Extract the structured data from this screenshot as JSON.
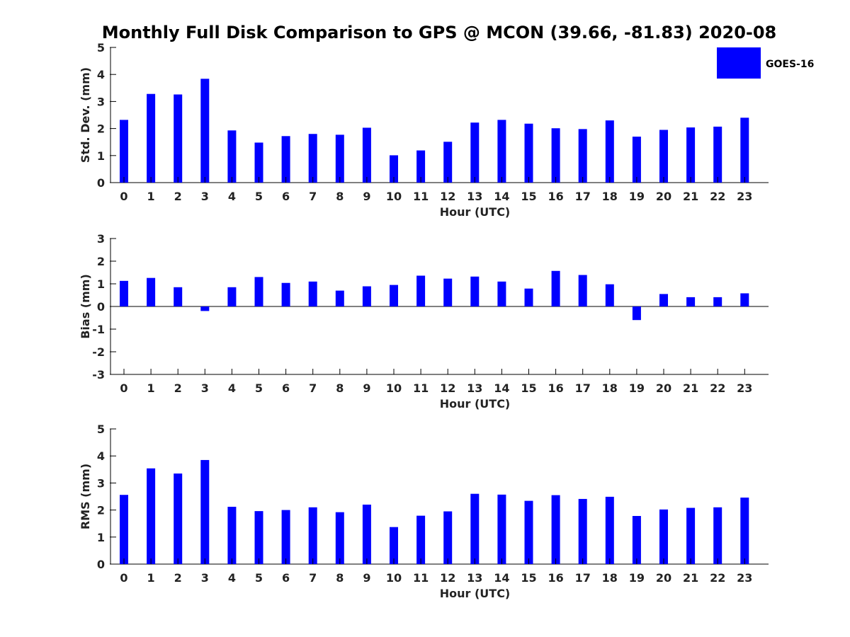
{
  "chart_data": {
    "type": "bar",
    "title": "Monthly Full Disk Comparison to GPS @ MCON (39.66, -81.83) 2020-08",
    "legend": {
      "label": "GOES-16",
      "color": "#0000ff",
      "placement": "top-right"
    },
    "categories": [
      "0",
      "1",
      "2",
      "3",
      "4",
      "5",
      "6",
      "7",
      "8",
      "9",
      "10",
      "11",
      "12",
      "13",
      "14",
      "15",
      "16",
      "17",
      "18",
      "19",
      "20",
      "21",
      "22",
      "23"
    ],
    "panels": [
      {
        "ylabel": "Std. Dev. (mm)",
        "xlabel": "Hour (UTC)",
        "ylim": [
          0,
          5
        ],
        "yticks": [
          "0",
          "1",
          "2",
          "3",
          "4",
          "5"
        ],
        "values": [
          2.32,
          3.28,
          3.26,
          3.84,
          1.93,
          1.48,
          1.72,
          1.8,
          1.77,
          2.03,
          1.01,
          1.19,
          1.51,
          2.22,
          2.32,
          2.18,
          2.01,
          1.98,
          2.3,
          1.7,
          1.95,
          2.04,
          2.07,
          2.4
        ]
      },
      {
        "ylabel": "Bias (mm)",
        "xlabel": "Hour (UTC)",
        "ylim": [
          -3,
          3
        ],
        "yticks": [
          "-3",
          "-2",
          "-1",
          "0",
          "1",
          "2",
          "3"
        ],
        "values": [
          1.13,
          1.26,
          0.85,
          -0.2,
          0.85,
          1.3,
          1.04,
          1.1,
          0.7,
          0.89,
          0.95,
          1.36,
          1.23,
          1.32,
          1.1,
          0.79,
          1.57,
          1.39,
          0.98,
          -0.6,
          0.55,
          0.41,
          0.41,
          0.58
        ]
      },
      {
        "ylabel": "RMS (mm)",
        "xlabel": "Hour (UTC)",
        "ylim": [
          0,
          5
        ],
        "yticks": [
          "0",
          "1",
          "2",
          "3",
          "4",
          "5"
        ],
        "values": [
          2.56,
          3.54,
          3.35,
          3.85,
          2.12,
          1.96,
          2.0,
          2.1,
          1.92,
          2.2,
          1.37,
          1.79,
          1.95,
          2.6,
          2.57,
          2.34,
          2.55,
          2.41,
          2.49,
          1.78,
          2.02,
          2.08,
          2.1,
          2.46
        ]
      }
    ]
  }
}
